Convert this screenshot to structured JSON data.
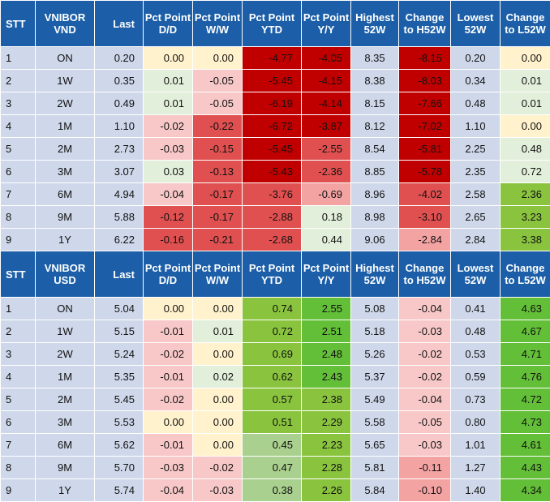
{
  "colors": {
    "header_bg": "#1c5fa8",
    "label_bg": "#cfd8ea",
    "neutral": "#fff2cc",
    "pos_light": "#e2efda",
    "pos_mid": "#a9d08e",
    "pos_strong": "#8ac43f",
    "pos_dark": "#63be38",
    "neg_light": "#f8c8c8",
    "neg_mid": "#f4a3a3",
    "neg_strong": "#e05050",
    "neg_dark": "#c00000"
  },
  "vnd": {
    "headers": [
      "STT",
      "VNIBOR VND",
      "Last",
      "Pct Point D/D",
      "Pct Point W/W",
      "Pct Point YTD",
      "Pct Point Y/Y",
      "Highest 52W",
      "Change to H52W",
      "Lowest 52W",
      "Change to L52W"
    ],
    "rows": [
      {
        "stt": "1",
        "ten": "ON",
        "last": "0.20",
        "dd": "0.00",
        "ww": "0.00",
        "ytd": "-4.77",
        "yy": "-4.05",
        "hi": "8.35",
        "chi": "-8.15",
        "lo": "0.20",
        "clo": "0.00"
      },
      {
        "stt": "2",
        "ten": "1W",
        "last": "0.35",
        "dd": "0.01",
        "ww": "-0.05",
        "ytd": "-5.45",
        "yy": "-4.15",
        "hi": "8.38",
        "chi": "-8.03",
        "lo": "0.34",
        "clo": "0.01"
      },
      {
        "stt": "3",
        "ten": "2W",
        "last": "0.49",
        "dd": "0.01",
        "ww": "-0.05",
        "ytd": "-6.19",
        "yy": "-4.14",
        "hi": "8.15",
        "chi": "-7.66",
        "lo": "0.48",
        "clo": "0.01"
      },
      {
        "stt": "4",
        "ten": "1M",
        "last": "1.10",
        "dd": "-0.02",
        "ww": "-0.22",
        "ytd": "-6.72",
        "yy": "-3.87",
        "hi": "8.12",
        "chi": "-7.02",
        "lo": "1.10",
        "clo": "0.00"
      },
      {
        "stt": "5",
        "ten": "2M",
        "last": "2.73",
        "dd": "-0.03",
        "ww": "-0.15",
        "ytd": "-5.45",
        "yy": "-2.55",
        "hi": "8.54",
        "chi": "-5.81",
        "lo": "2.25",
        "clo": "0.48"
      },
      {
        "stt": "6",
        "ten": "3M",
        "last": "3.07",
        "dd": "0.03",
        "ww": "-0.13",
        "ytd": "-5.43",
        "yy": "-2.36",
        "hi": "8.85",
        "chi": "-5.78",
        "lo": "2.35",
        "clo": "0.72"
      },
      {
        "stt": "7",
        "ten": "6M",
        "last": "4.94",
        "dd": "-0.04",
        "ww": "-0.17",
        "ytd": "-3.76",
        "yy": "-0.69",
        "hi": "8.96",
        "chi": "-4.02",
        "lo": "2.58",
        "clo": "2.36"
      },
      {
        "stt": "8",
        "ten": "9M",
        "last": "5.88",
        "dd": "-0.12",
        "ww": "-0.17",
        "ytd": "-2.88",
        "yy": "0.18",
        "hi": "8.98",
        "chi": "-3.10",
        "lo": "2.65",
        "clo": "3.23"
      },
      {
        "stt": "9",
        "ten": "1Y",
        "last": "6.22",
        "dd": "-0.16",
        "ww": "-0.21",
        "ytd": "-2.68",
        "yy": "0.44",
        "hi": "9.06",
        "chi": "-2.84",
        "lo": "2.84",
        "clo": "3.38"
      }
    ]
  },
  "usd": {
    "headers": [
      "STT",
      "VNIBOR USD",
      "Last",
      "Pct Point D/D",
      "Pct Point W/W",
      "Pct Point YTD",
      "Pct Point Y/Y",
      "Highest 52W",
      "Change to H52W",
      "Lowest 52W",
      "Change to L52W"
    ],
    "rows": [
      {
        "stt": "1",
        "ten": "ON",
        "last": "5.04",
        "dd": "0.00",
        "ww": "0.00",
        "ytd": "0.74",
        "yy": "2.55",
        "hi": "5.08",
        "chi": "-0.04",
        "lo": "0.41",
        "clo": "4.63"
      },
      {
        "stt": "2",
        "ten": "1W",
        "last": "5.15",
        "dd": "-0.01",
        "ww": "0.01",
        "ytd": "0.72",
        "yy": "2.51",
        "hi": "5.18",
        "chi": "-0.03",
        "lo": "0.48",
        "clo": "4.67"
      },
      {
        "stt": "3",
        "ten": "2W",
        "last": "5.24",
        "dd": "-0.02",
        "ww": "0.00",
        "ytd": "0.69",
        "yy": "2.48",
        "hi": "5.26",
        "chi": "-0.02",
        "lo": "0.53",
        "clo": "4.71"
      },
      {
        "stt": "4",
        "ten": "1M",
        "last": "5.35",
        "dd": "-0.01",
        "ww": "0.02",
        "ytd": "0.62",
        "yy": "2.43",
        "hi": "5.37",
        "chi": "-0.02",
        "lo": "0.59",
        "clo": "4.76"
      },
      {
        "stt": "5",
        "ten": "2M",
        "last": "5.45",
        "dd": "-0.02",
        "ww": "0.00",
        "ytd": "0.57",
        "yy": "2.38",
        "hi": "5.49",
        "chi": "-0.04",
        "lo": "0.73",
        "clo": "4.72"
      },
      {
        "stt": "6",
        "ten": "3M",
        "last": "5.53",
        "dd": "0.00",
        "ww": "0.00",
        "ytd": "0.51",
        "yy": "2.29",
        "hi": "5.58",
        "chi": "-0.05",
        "lo": "0.80",
        "clo": "4.73"
      },
      {
        "stt": "7",
        "ten": "6M",
        "last": "5.62",
        "dd": "-0.01",
        "ww": "0.00",
        "ytd": "0.45",
        "yy": "2.23",
        "hi": "5.65",
        "chi": "-0.03",
        "lo": "1.01",
        "clo": "4.61"
      },
      {
        "stt": "8",
        "ten": "9M",
        "last": "5.70",
        "dd": "-0.03",
        "ww": "-0.02",
        "ytd": "0.47",
        "yy": "2.28",
        "hi": "5.81",
        "chi": "-0.11",
        "lo": "1.27",
        "clo": "4.43"
      },
      {
        "stt": "9",
        "ten": "1Y",
        "last": "5.74",
        "dd": "-0.04",
        "ww": "-0.03",
        "ytd": "0.38",
        "yy": "2.26",
        "hi": "5.84",
        "chi": "-0.10",
        "lo": "1.40",
        "clo": "4.34"
      }
    ]
  }
}
